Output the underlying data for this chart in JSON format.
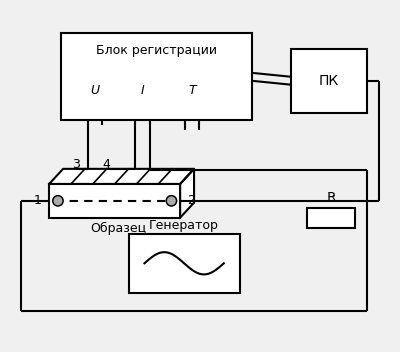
{
  "bg_color": "#f0f0f0",
  "line_color": "#000000",
  "box_color": "#ffffff",
  "text_color": "#000000",
  "gray_dot": "#aaaaaa",
  "title": "",
  "blok_label": "Блок регистрации",
  "blok_sublabels": [
    "U",
    "I",
    "T"
  ],
  "pk_label": "ПК",
  "obrazec_label": "Образец",
  "generator_label": "Генератор",
  "R_label": "R",
  "probe_labels": [
    "1",
    "2",
    "3",
    "4"
  ]
}
